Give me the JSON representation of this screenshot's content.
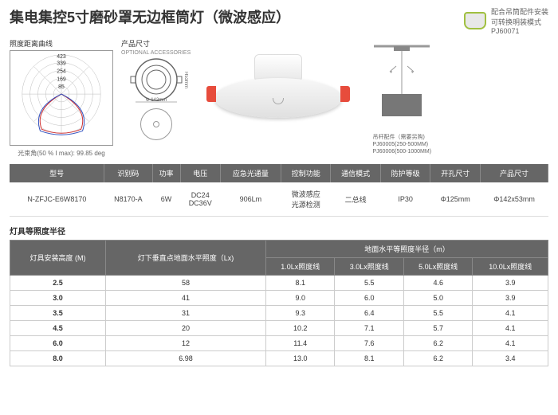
{
  "title": "集电集控5寸磨砂罩无边框筒灯（微波感应）",
  "accessory": {
    "line1": "配合吊筒配件安装",
    "line2": "可转换明装模式",
    "code": "PJ60071"
  },
  "polar": {
    "label": "照度距离曲线",
    "rings": [
      "85",
      "169",
      "254",
      "339",
      "423"
    ],
    "caption": "光束角(50 % I max):  99.85 deg",
    "ring_color": "#999",
    "red": "#d03030",
    "blue": "#3050c0"
  },
  "dimensions": {
    "label": "产品尺寸",
    "sublabel": "OPTIONAL ACCESSORIES",
    "height": "H53mm",
    "width": "Φ 142mm"
  },
  "pendant": {
    "label": "吊杆配件（需要另购)",
    "codes": [
      "PJ60005(250-500MM)",
      "PJ60006(500-1000MM)"
    ]
  },
  "spec": {
    "headers": [
      "型号",
      "识别码",
      "功率",
      "电压",
      "应急光通量",
      "控制功能",
      "通信模式",
      "防护等级",
      "开孔尺寸",
      "产品尺寸"
    ],
    "row": [
      "N-ZFJC-E6W8170",
      "N8170-A",
      "6W",
      "DC24\nDC36V",
      "906Lm",
      "微波感应\n光源检测",
      "二总线",
      "IP30",
      "Φ125mm",
      "Φ142x53mm"
    ]
  },
  "illum": {
    "title": "灯具等照度半径",
    "h1": "灯具安装高度 (M)",
    "h2": "灯下垂直点地面水平照度（Lx)",
    "h3": "地面水平等照度半径（m）",
    "sub": [
      "1.0Lx照度线",
      "3.0Lx照度线",
      "5.0Lx照度线",
      "10.0Lx照度线"
    ],
    "rows": [
      [
        "2.5",
        "58",
        "8.1",
        "5.5",
        "4.6",
        "3.9"
      ],
      [
        "3.0",
        "41",
        "9.0",
        "6.0",
        "5.0",
        "3.9"
      ],
      [
        "3.5",
        "31",
        "9.3",
        "6.4",
        "5.5",
        "4.1"
      ],
      [
        "4.5",
        "20",
        "10.2",
        "7.1",
        "5.7",
        "4.1"
      ],
      [
        "6.0",
        "12",
        "11.4",
        "7.6",
        "6.2",
        "4.1"
      ],
      [
        "8.0",
        "6.98",
        "13.0",
        "8.1",
        "6.2",
        "3.4"
      ]
    ]
  }
}
